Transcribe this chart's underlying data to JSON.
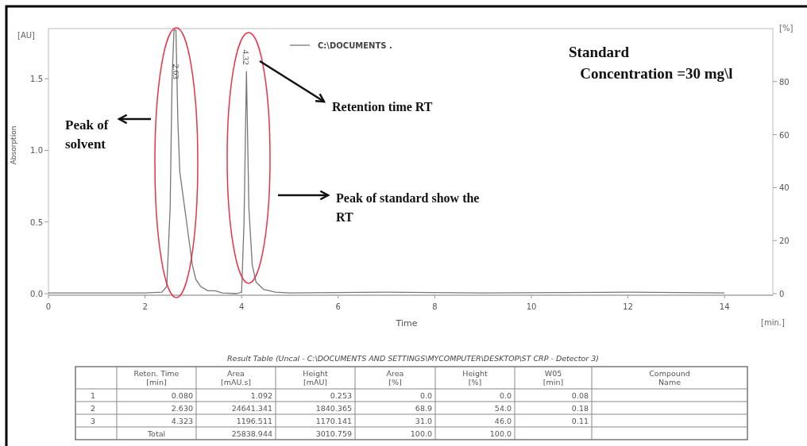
{
  "chart_data": [
    {
      "type": "line",
      "xlabel": "Time",
      "ylabel": "Absorption",
      "y2label": "[%]",
      "xlim": [
        0,
        15
      ],
      "xticks": [
        0,
        2,
        4,
        6,
        8,
        10,
        12,
        14
      ],
      "ylim": [
        0,
        1.85
      ],
      "yticks": [
        {
          "value": 0,
          "label": "0.0"
        },
        {
          "value": 0.5,
          "label": "0.5"
        },
        {
          "value": 1,
          "label": "1.0"
        },
        {
          "value": 1.5,
          "label": "1.5"
        }
      ],
      "y2lim": [
        0,
        100
      ],
      "y2ticks": [
        0,
        20,
        40,
        60,
        80
      ],
      "legend": "top",
      "grid": false,
      "marker": "none",
      "line_style": "solid",
      "series": [
        {
          "name": "C:\\DOCUMENTS .",
          "color": "#777777",
          "x": [
            0,
            2.0,
            2.35,
            2.45,
            2.52,
            2.56,
            2.6,
            2.64,
            2.68,
            2.72,
            2.8,
            2.9,
            2.98,
            3.05,
            3.15,
            3.3,
            3.45,
            3.6,
            3.9,
            4.0,
            4.05,
            4.1,
            4.15,
            4.22,
            4.3,
            4.45,
            4.7,
            5.0,
            7,
            9,
            12,
            14
          ],
          "values": [
            0.005,
            0.005,
            0.01,
            0.05,
            0.6,
            1.5,
            1.84,
            1.84,
            1.2,
            0.85,
            0.65,
            0.4,
            0.2,
            0.1,
            0.05,
            0.02,
            0.02,
            0.005,
            0.0,
            0.01,
            0.5,
            1.55,
            0.6,
            0.2,
            0.08,
            0.03,
            0.01,
            0.005,
            0.01,
            0.005,
            0.01,
            0.005
          ]
        }
      ],
      "annotations": [
        "Peak of\nsolvent",
        "Retention time RT",
        "Peak of standard show the\nRT",
        "Standard\n   Concentration =30 mg\\l",
        "[AU]",
        "[min.]",
        "2.63",
        {
          "text": "4.32",
          "x": 4.1,
          "y": 1.55
        }
      ]
    },
    {
      "type": "other",
      "title": "Result Table (Uncal - C:\\DOCUMENTS AND SETTINGS\\MYCOMPUTER\\DESKTOP\\ST CRP - Detector 3)",
      "categories": [
        null,
        "Reten. Time\n[min]",
        "Area\n[mAU.s]",
        "Height\n[mAU]",
        "Area\n[%]",
        "Height\n[%]",
        "W05\n[min]",
        "Compound\nName"
      ],
      "y_categories": [
        "1",
        "2",
        "3",
        "Total"
      ],
      "cell_labels": [
        [
          "0.080",
          "1.092",
          "0.253",
          "0.0",
          "0.0",
          "0.08",
          null
        ],
        [
          "2.630",
          "24641.341",
          "1840.365",
          "68.9",
          "54.0",
          "0.18",
          null
        ],
        [
          "4.323",
          "1196.511",
          "1170.141",
          "31.0",
          "46.0",
          "0.11",
          null
        ],
        [
          null,
          "25838.944",
          "3010.759",
          "100.0",
          "100.0",
          null,
          null
        ]
      ]
    }
  ]
}
